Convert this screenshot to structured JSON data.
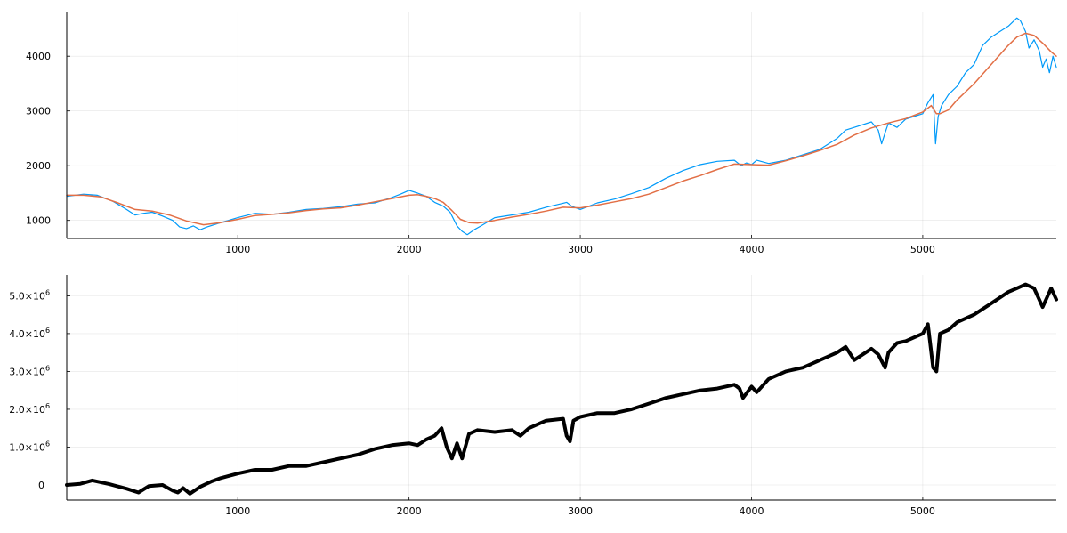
{
  "chart_data": [
    {
      "type": "line",
      "title": "",
      "xlabel": "",
      "ylabel": "",
      "xlim": [
        1,
        5780
      ],
      "ylim": [
        670,
        4800
      ],
      "grid": true,
      "legend": "none",
      "x_ticks": [
        {
          "value": 1000,
          "label": "1000"
        },
        {
          "value": 2000,
          "label": "2000"
        },
        {
          "value": 3000,
          "label": "3000"
        },
        {
          "value": 4000,
          "label": "4000"
        },
        {
          "value": 5000,
          "label": "5000"
        }
      ],
      "y_ticks": [
        {
          "value": 1000,
          "label": "1000"
        },
        {
          "value": 2000,
          "label": "2000"
        },
        {
          "value": 3000,
          "label": "3000"
        },
        {
          "value": 4000,
          "label": "4000"
        }
      ],
      "series": [
        {
          "color": "#009af9",
          "x": [
            1,
            100,
            180,
            270,
            350,
            400,
            450,
            500,
            560,
            620,
            660,
            700,
            740,
            780,
            820,
            900,
            1000,
            1100,
            1200,
            1300,
            1400,
            1500,
            1600,
            1700,
            1800,
            1900,
            1950,
            2000,
            2050,
            2100,
            2150,
            2200,
            2240,
            2280,
            2310,
            2340,
            2380,
            2420,
            2500,
            2600,
            2700,
            2800,
            2880,
            2920,
            2950,
            3000,
            3100,
            3200,
            3300,
            3400,
            3500,
            3600,
            3700,
            3800,
            3900,
            3940,
            3970,
            4000,
            4030,
            4100,
            4200,
            4300,
            4400,
            4500,
            4550,
            4600,
            4700,
            4740,
            4760,
            4780,
            4800,
            4850,
            4900,
            5000,
            5030,
            5060,
            5075,
            5090,
            5110,
            5150,
            5200,
            5250,
            5300,
            5350,
            5400,
            5450,
            5500,
            5550,
            5570,
            5600,
            5620,
            5650,
            5680,
            5700,
            5720,
            5740,
            5760,
            5780
          ],
          "values": [
            1440,
            1480,
            1460,
            1350,
            1200,
            1100,
            1130,
            1150,
            1080,
            1000,
            880,
            850,
            900,
            830,
            880,
            960,
            1050,
            1130,
            1110,
            1150,
            1200,
            1220,
            1250,
            1300,
            1320,
            1420,
            1480,
            1550,
            1500,
            1440,
            1330,
            1260,
            1150,
            900,
            800,
            740,
            830,
            900,
            1050,
            1100,
            1150,
            1240,
            1300,
            1330,
            1260,
            1200,
            1320,
            1390,
            1490,
            1600,
            1770,
            1910,
            2020,
            2080,
            2100,
            2000,
            2050,
            2020,
            2100,
            2040,
            2100,
            2200,
            2300,
            2500,
            2650,
            2700,
            2800,
            2650,
            2400,
            2600,
            2780,
            2700,
            2850,
            2950,
            3150,
            3300,
            2400,
            2900,
            3100,
            3300,
            3450,
            3700,
            3850,
            4200,
            4350,
            4450,
            4550,
            4700,
            4650,
            4450,
            4150,
            4300,
            4100,
            3800,
            3950,
            3700,
            4000,
            3800
          ]
        },
        {
          "color": "#e26f46",
          "x": [
            1,
            100,
            200,
            300,
            400,
            500,
            600,
            700,
            800,
            900,
            1000,
            1100,
            1200,
            1300,
            1400,
            1500,
            1600,
            1700,
            1800,
            1900,
            2000,
            2050,
            2100,
            2150,
            2200,
            2250,
            2300,
            2350,
            2400,
            2500,
            2600,
            2700,
            2800,
            2900,
            3000,
            3100,
            3200,
            3300,
            3400,
            3500,
            3600,
            3700,
            3800,
            3900,
            4000,
            4100,
            4200,
            4300,
            4400,
            4500,
            4600,
            4700,
            4800,
            4900,
            5000,
            5050,
            5080,
            5100,
            5150,
            5200,
            5300,
            5400,
            5500,
            5550,
            5600,
            5650,
            5700,
            5750,
            5780
          ],
          "values": [
            1460,
            1460,
            1430,
            1320,
            1200,
            1170,
            1100,
            990,
            920,
            960,
            1020,
            1090,
            1110,
            1140,
            1180,
            1210,
            1230,
            1280,
            1340,
            1400,
            1460,
            1470,
            1440,
            1400,
            1330,
            1180,
            1020,
            960,
            950,
            1000,
            1060,
            1110,
            1170,
            1240,
            1230,
            1280,
            1340,
            1400,
            1480,
            1600,
            1720,
            1820,
            1930,
            2030,
            2020,
            2010,
            2090,
            2180,
            2280,
            2390,
            2560,
            2690,
            2780,
            2860,
            2980,
            3100,
            2950,
            2950,
            3020,
            3200,
            3500,
            3850,
            4200,
            4350,
            4420,
            4380,
            4240,
            4080,
            4000
          ]
        }
      ]
    },
    {
      "type": "line",
      "title": "",
      "xlabel": "Portfolio",
      "ylabel": "",
      "xlim": [
        1,
        5780
      ],
      "ylim": [
        -400000,
        5550000
      ],
      "grid": true,
      "legend": "none",
      "x_ticks": [
        {
          "value": 1000,
          "label": "1000"
        },
        {
          "value": 2000,
          "label": "2000"
        },
        {
          "value": 3000,
          "label": "3000"
        },
        {
          "value": 4000,
          "label": "4000"
        },
        {
          "value": 5000,
          "label": "5000"
        }
      ],
      "y_ticks": [
        {
          "value": 0,
          "mantissa": "0",
          "exponent": ""
        },
        {
          "value": 1000000,
          "mantissa": "1.0×10",
          "exponent": "6"
        },
        {
          "value": 2000000,
          "mantissa": "2.0×10",
          "exponent": "6"
        },
        {
          "value": 3000000,
          "mantissa": "3.0×10",
          "exponent": "6"
        },
        {
          "value": 4000000,
          "mantissa": "4.0×10",
          "exponent": "6"
        },
        {
          "value": 5000000,
          "mantissa": "5.0×10",
          "exponent": "6"
        }
      ],
      "series": [
        {
          "color": "#000000",
          "x": [
            1,
            80,
            150,
            250,
            350,
            420,
            480,
            560,
            620,
            650,
            680,
            720,
            780,
            850,
            900,
            1000,
            1100,
            1200,
            1300,
            1400,
            1500,
            1600,
            1700,
            1800,
            1900,
            2000,
            2050,
            2100,
            2150,
            2190,
            2220,
            2250,
            2280,
            2310,
            2350,
            2400,
            2500,
            2600,
            2650,
            2700,
            2800,
            2900,
            2920,
            2940,
            2960,
            3000,
            3100,
            3200,
            3300,
            3400,
            3500,
            3600,
            3700,
            3800,
            3900,
            3930,
            3950,
            4000,
            4030,
            4100,
            4200,
            4300,
            4400,
            4500,
            4550,
            4600,
            4700,
            4740,
            4780,
            4800,
            4850,
            4900,
            5000,
            5030,
            5060,
            5080,
            5100,
            5150,
            5200,
            5300,
            5400,
            5500,
            5550,
            5600,
            5650,
            5700,
            5750,
            5780
          ],
          "values": [
            0,
            30000,
            120000,
            20000,
            -100000,
            -200000,
            -30000,
            0,
            -150000,
            -200000,
            -80000,
            -230000,
            -50000,
            100000,
            180000,
            300000,
            400000,
            400000,
            500000,
            500000,
            600000,
            700000,
            800000,
            950000,
            1050000,
            1100000,
            1050000,
            1200000,
            1300000,
            1500000,
            1000000,
            700000,
            1100000,
            700000,
            1350000,
            1450000,
            1400000,
            1450000,
            1300000,
            1500000,
            1700000,
            1750000,
            1300000,
            1150000,
            1700000,
            1800000,
            1900000,
            1900000,
            2000000,
            2150000,
            2300000,
            2400000,
            2500000,
            2550000,
            2650000,
            2550000,
            2300000,
            2600000,
            2450000,
            2800000,
            3000000,
            3100000,
            3300000,
            3500000,
            3650000,
            3300000,
            3600000,
            3450000,
            3100000,
            3500000,
            3750000,
            3800000,
            4000000,
            4250000,
            3100000,
            3000000,
            4000000,
            4100000,
            4300000,
            4500000,
            4800000,
            5100000,
            5200000,
            5300000,
            5200000,
            4700000,
            5200000,
            4900000
          ]
        }
      ]
    }
  ]
}
